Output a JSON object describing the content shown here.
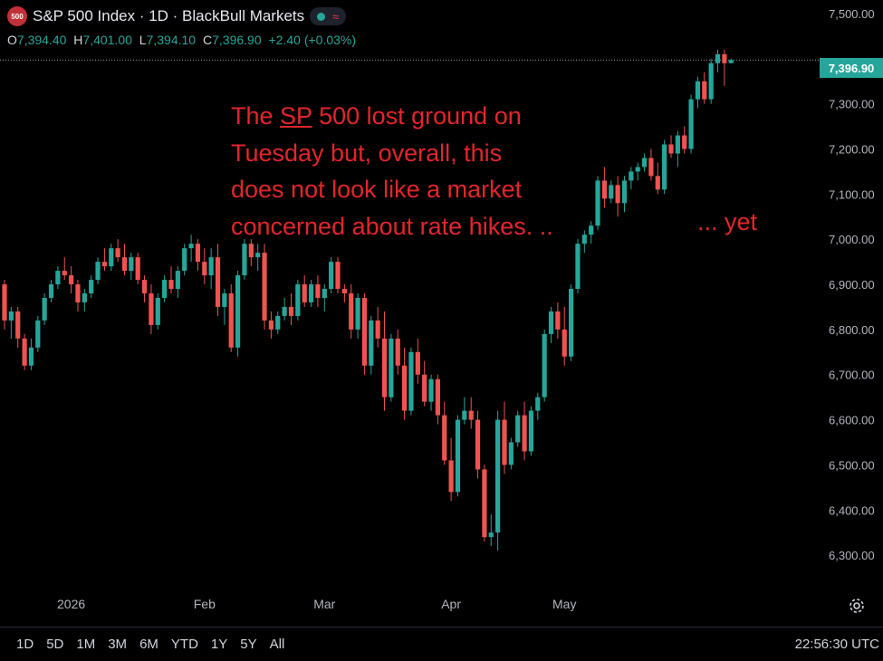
{
  "header": {
    "badge": "500",
    "title": "S&P 500 Index · 1D · BlackBull Markets",
    "wave_glyph": "≈"
  },
  "ohlc": {
    "o_label": "O",
    "o_value": "7,394.40",
    "h_label": "H",
    "h_value": "7,401.00",
    "l_label": "L",
    "l_value": "7,394.10",
    "c_label": "C",
    "c_value": "7,396.90",
    "change": "+2.40 (+0.03%)"
  },
  "annotation": {
    "line1_a": "The ",
    "line1_b": "SP",
    "line1_c": " 500 lost ground on",
    "line2": "Tuesday but, overall, this",
    "line3": "does not look like a market",
    "line4": "concerned about rate hikes. ..",
    "tail": "... yet"
  },
  "last_price_tag": "7,396.90",
  "bottom": {
    "ranges": [
      "1D",
      "5D",
      "1M",
      "3M",
      "6M",
      "YTD",
      "1Y",
      "5Y",
      "All"
    ],
    "clock": "22:56:30 UTC"
  },
  "colors": {
    "up": "#26a69a",
    "down": "#ef5350",
    "annotation": "#e2262c",
    "background": "#000000"
  },
  "chart_data": {
    "type": "candlestick",
    "x_tick_labels": [
      "2026",
      "Feb",
      "Mar",
      "Apr",
      "May"
    ],
    "x_tick_index": [
      10,
      30,
      48,
      67,
      84
    ],
    "y_ticks": [
      6300,
      6400,
      6500,
      6600,
      6700,
      6800,
      6900,
      7000,
      7100,
      7200,
      7300,
      7500
    ],
    "y_tick_labels": [
      "6,300.00",
      "6,400.00",
      "6,500.00",
      "6,600.00",
      "6,700.00",
      "6,800.00",
      "6,900.00",
      "7,000.00",
      "7,100.00",
      "7,200.00",
      "7,300.00",
      "7,500.00"
    ],
    "ylim": [
      6230,
      7530
    ],
    "last_price": 7396.9,
    "candles": [
      [
        6900,
        6910,
        6800,
        6820
      ],
      [
        6820,
        6850,
        6780,
        6840
      ],
      [
        6840,
        6850,
        6760,
        6780
      ],
      [
        6780,
        6790,
        6710,
        6720
      ],
      [
        6720,
        6780,
        6710,
        6760
      ],
      [
        6760,
        6830,
        6750,
        6820
      ],
      [
        6820,
        6880,
        6810,
        6870
      ],
      [
        6870,
        6910,
        6860,
        6900
      ],
      [
        6900,
        6940,
        6890,
        6930
      ],
      [
        6930,
        6960,
        6910,
        6920
      ],
      [
        6920,
        6940,
        6880,
        6900
      ],
      [
        6900,
        6910,
        6840,
        6860
      ],
      [
        6860,
        6890,
        6840,
        6880
      ],
      [
        6880,
        6920,
        6870,
        6910
      ],
      [
        6910,
        6960,
        6900,
        6950
      ],
      [
        6950,
        6980,
        6930,
        6940
      ],
      [
        6940,
        6990,
        6930,
        6980
      ],
      [
        6980,
        7000,
        6950,
        6960
      ],
      [
        6960,
        6990,
        6920,
        6930
      ],
      [
        6930,
        6970,
        6910,
        6960
      ],
      [
        6960,
        6970,
        6900,
        6910
      ],
      [
        6910,
        6920,
        6860,
        6880
      ],
      [
        6880,
        6900,
        6790,
        6810
      ],
      [
        6810,
        6880,
        6800,
        6870
      ],
      [
        6870,
        6920,
        6860,
        6910
      ],
      [
        6910,
        6940,
        6880,
        6890
      ],
      [
        6890,
        6940,
        6870,
        6930
      ],
      [
        6930,
        6990,
        6920,
        6980
      ],
      [
        6980,
        7010,
        6950,
        6990
      ],
      [
        6990,
        7000,
        6930,
        6950
      ],
      [
        6950,
        6980,
        6900,
        6920
      ],
      [
        6920,
        6980,
        6890,
        6960
      ],
      [
        6960,
        6990,
        6830,
        6850
      ],
      [
        6850,
        6890,
        6810,
        6880
      ],
      [
        6880,
        6900,
        6750,
        6760
      ],
      [
        6760,
        6930,
        6740,
        6920
      ],
      [
        6920,
        7000,
        6910,
        6990
      ],
      [
        6990,
        7000,
        6940,
        6960
      ],
      [
        6960,
        6990,
        6930,
        6970
      ],
      [
        6970,
        6990,
        6800,
        6820
      ],
      [
        6820,
        6840,
        6780,
        6800
      ],
      [
        6800,
        6840,
        6790,
        6830
      ],
      [
        6830,
        6870,
        6820,
        6850
      ],
      [
        6850,
        6880,
        6810,
        6830
      ],
      [
        6830,
        6910,
        6820,
        6900
      ],
      [
        6900,
        6920,
        6850,
        6860
      ],
      [
        6860,
        6910,
        6850,
        6900
      ],
      [
        6900,
        6920,
        6850,
        6870
      ],
      [
        6870,
        6900,
        6840,
        6890
      ],
      [
        6890,
        6960,
        6880,
        6950
      ],
      [
        6950,
        6960,
        6880,
        6890
      ],
      [
        6890,
        6900,
        6860,
        6880
      ],
      [
        6880,
        6900,
        6780,
        6800
      ],
      [
        6800,
        6880,
        6780,
        6870
      ],
      [
        6870,
        6880,
        6700,
        6720
      ],
      [
        6720,
        6830,
        6700,
        6820
      ],
      [
        6820,
        6850,
        6760,
        6780
      ],
      [
        6780,
        6840,
        6620,
        6650
      ],
      [
        6650,
        6790,
        6640,
        6780
      ],
      [
        6780,
        6800,
        6700,
        6720
      ],
      [
        6720,
        6760,
        6600,
        6620
      ],
      [
        6620,
        6760,
        6610,
        6750
      ],
      [
        6750,
        6780,
        6680,
        6700
      ],
      [
        6700,
        6730,
        6630,
        6640
      ],
      [
        6640,
        6700,
        6620,
        6690
      ],
      [
        6690,
        6700,
        6590,
        6610
      ],
      [
        6610,
        6640,
        6500,
        6510
      ],
      [
        6510,
        6560,
        6420,
        6440
      ],
      [
        6440,
        6610,
        6430,
        6600
      ],
      [
        6600,
        6650,
        6590,
        6620
      ],
      [
        6620,
        6650,
        6580,
        6600
      ],
      [
        6600,
        6620,
        6470,
        6490
      ],
      [
        6490,
        6500,
        6330,
        6340
      ],
      [
        6340,
        6390,
        6320,
        6350
      ],
      [
        6350,
        6620,
        6310,
        6600
      ],
      [
        6600,
        6640,
        6480,
        6500
      ],
      [
        6500,
        6560,
        6490,
        6550
      ],
      [
        6550,
        6620,
        6540,
        6610
      ],
      [
        6610,
        6640,
        6510,
        6530
      ],
      [
        6530,
        6630,
        6520,
        6620
      ],
      [
        6620,
        6660,
        6600,
        6650
      ],
      [
        6650,
        6800,
        6640,
        6790
      ],
      [
        6790,
        6850,
        6770,
        6840
      ],
      [
        6840,
        6860,
        6780,
        6800
      ],
      [
        6800,
        6850,
        6720,
        6740
      ],
      [
        6740,
        6900,
        6730,
        6890
      ],
      [
        6890,
        7000,
        6880,
        6990
      ],
      [
        6990,
        7020,
        6970,
        7010
      ],
      [
        7010,
        7040,
        6990,
        7030
      ],
      [
        7030,
        7140,
        7020,
        7130
      ],
      [
        7130,
        7160,
        7070,
        7090
      ],
      [
        7090,
        7130,
        7080,
        7120
      ],
      [
        7120,
        7140,
        7050,
        7080
      ],
      [
        7080,
        7140,
        7060,
        7130
      ],
      [
        7130,
        7160,
        7110,
        7150
      ],
      [
        7150,
        7170,
        7130,
        7160
      ],
      [
        7160,
        7190,
        7150,
        7180
      ],
      [
        7180,
        7200,
        7130,
        7140
      ],
      [
        7140,
        7170,
        7100,
        7110
      ],
      [
        7110,
        7220,
        7100,
        7210
      ],
      [
        7210,
        7230,
        7180,
        7190
      ],
      [
        7190,
        7240,
        7160,
        7230
      ],
      [
        7230,
        7250,
        7190,
        7200
      ],
      [
        7200,
        7320,
        7190,
        7310
      ],
      [
        7310,
        7360,
        7290,
        7350
      ],
      [
        7350,
        7370,
        7300,
        7310
      ],
      [
        7310,
        7400,
        7300,
        7390
      ],
      [
        7390,
        7420,
        7370,
        7410
      ],
      [
        7410,
        7420,
        7340,
        7390
      ],
      [
        7390,
        7400,
        7390,
        7397
      ]
    ]
  }
}
